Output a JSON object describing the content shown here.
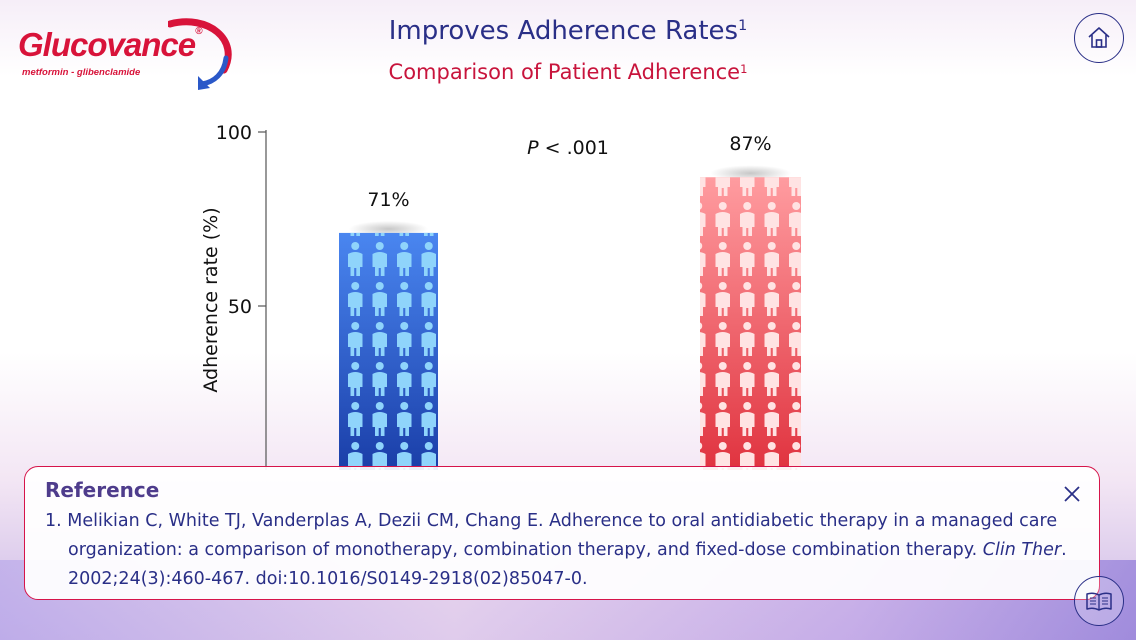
{
  "brand": {
    "name": "Glucovance",
    "registered_mark": "®",
    "tagline": "metformin - glibenclamide",
    "color": "#d8133a"
  },
  "header": {
    "title": "Improves Adherence Rates",
    "title_sup": "1",
    "subtitle": "Comparison of Patient Adherence",
    "subtitle_sup": "1",
    "title_color": "#2a2f87",
    "subtitle_color": "#c8143c"
  },
  "nav": {
    "home_icon": "home-icon",
    "reference_icon": "book-icon"
  },
  "chart_data": {
    "type": "bar",
    "categories": [
      "",
      ""
    ],
    "values": [
      71,
      87
    ],
    "value_labels": [
      "71%",
      "87%"
    ],
    "series_colors": [
      "#2f6fe0",
      "#ec5a63"
    ],
    "ylabel": "Adherence rate (%)",
    "yticks": [
      "50",
      "100"
    ],
    "ylim": [
      0,
      100
    ],
    "annotation": {
      "italic": "P",
      "text": " < .001"
    },
    "grid": false
  },
  "reference": {
    "title": "Reference",
    "number": "1.",
    "text_main": "Melikian C, White TJ, Vanderplas A, Dezii CM, Chang E. Adherence to oral antidiabetic therapy in a managed care organization: a comparison of monotherapy, combination therapy, and fixed-dose combination therapy.",
    "journal": "Clin Ther",
    "text_tail": ". 2002;24(3):460-467. doi:10.1016/S0149-2918(02)85047-0.",
    "close_icon": "close-icon",
    "border_color": "#d6144a"
  }
}
